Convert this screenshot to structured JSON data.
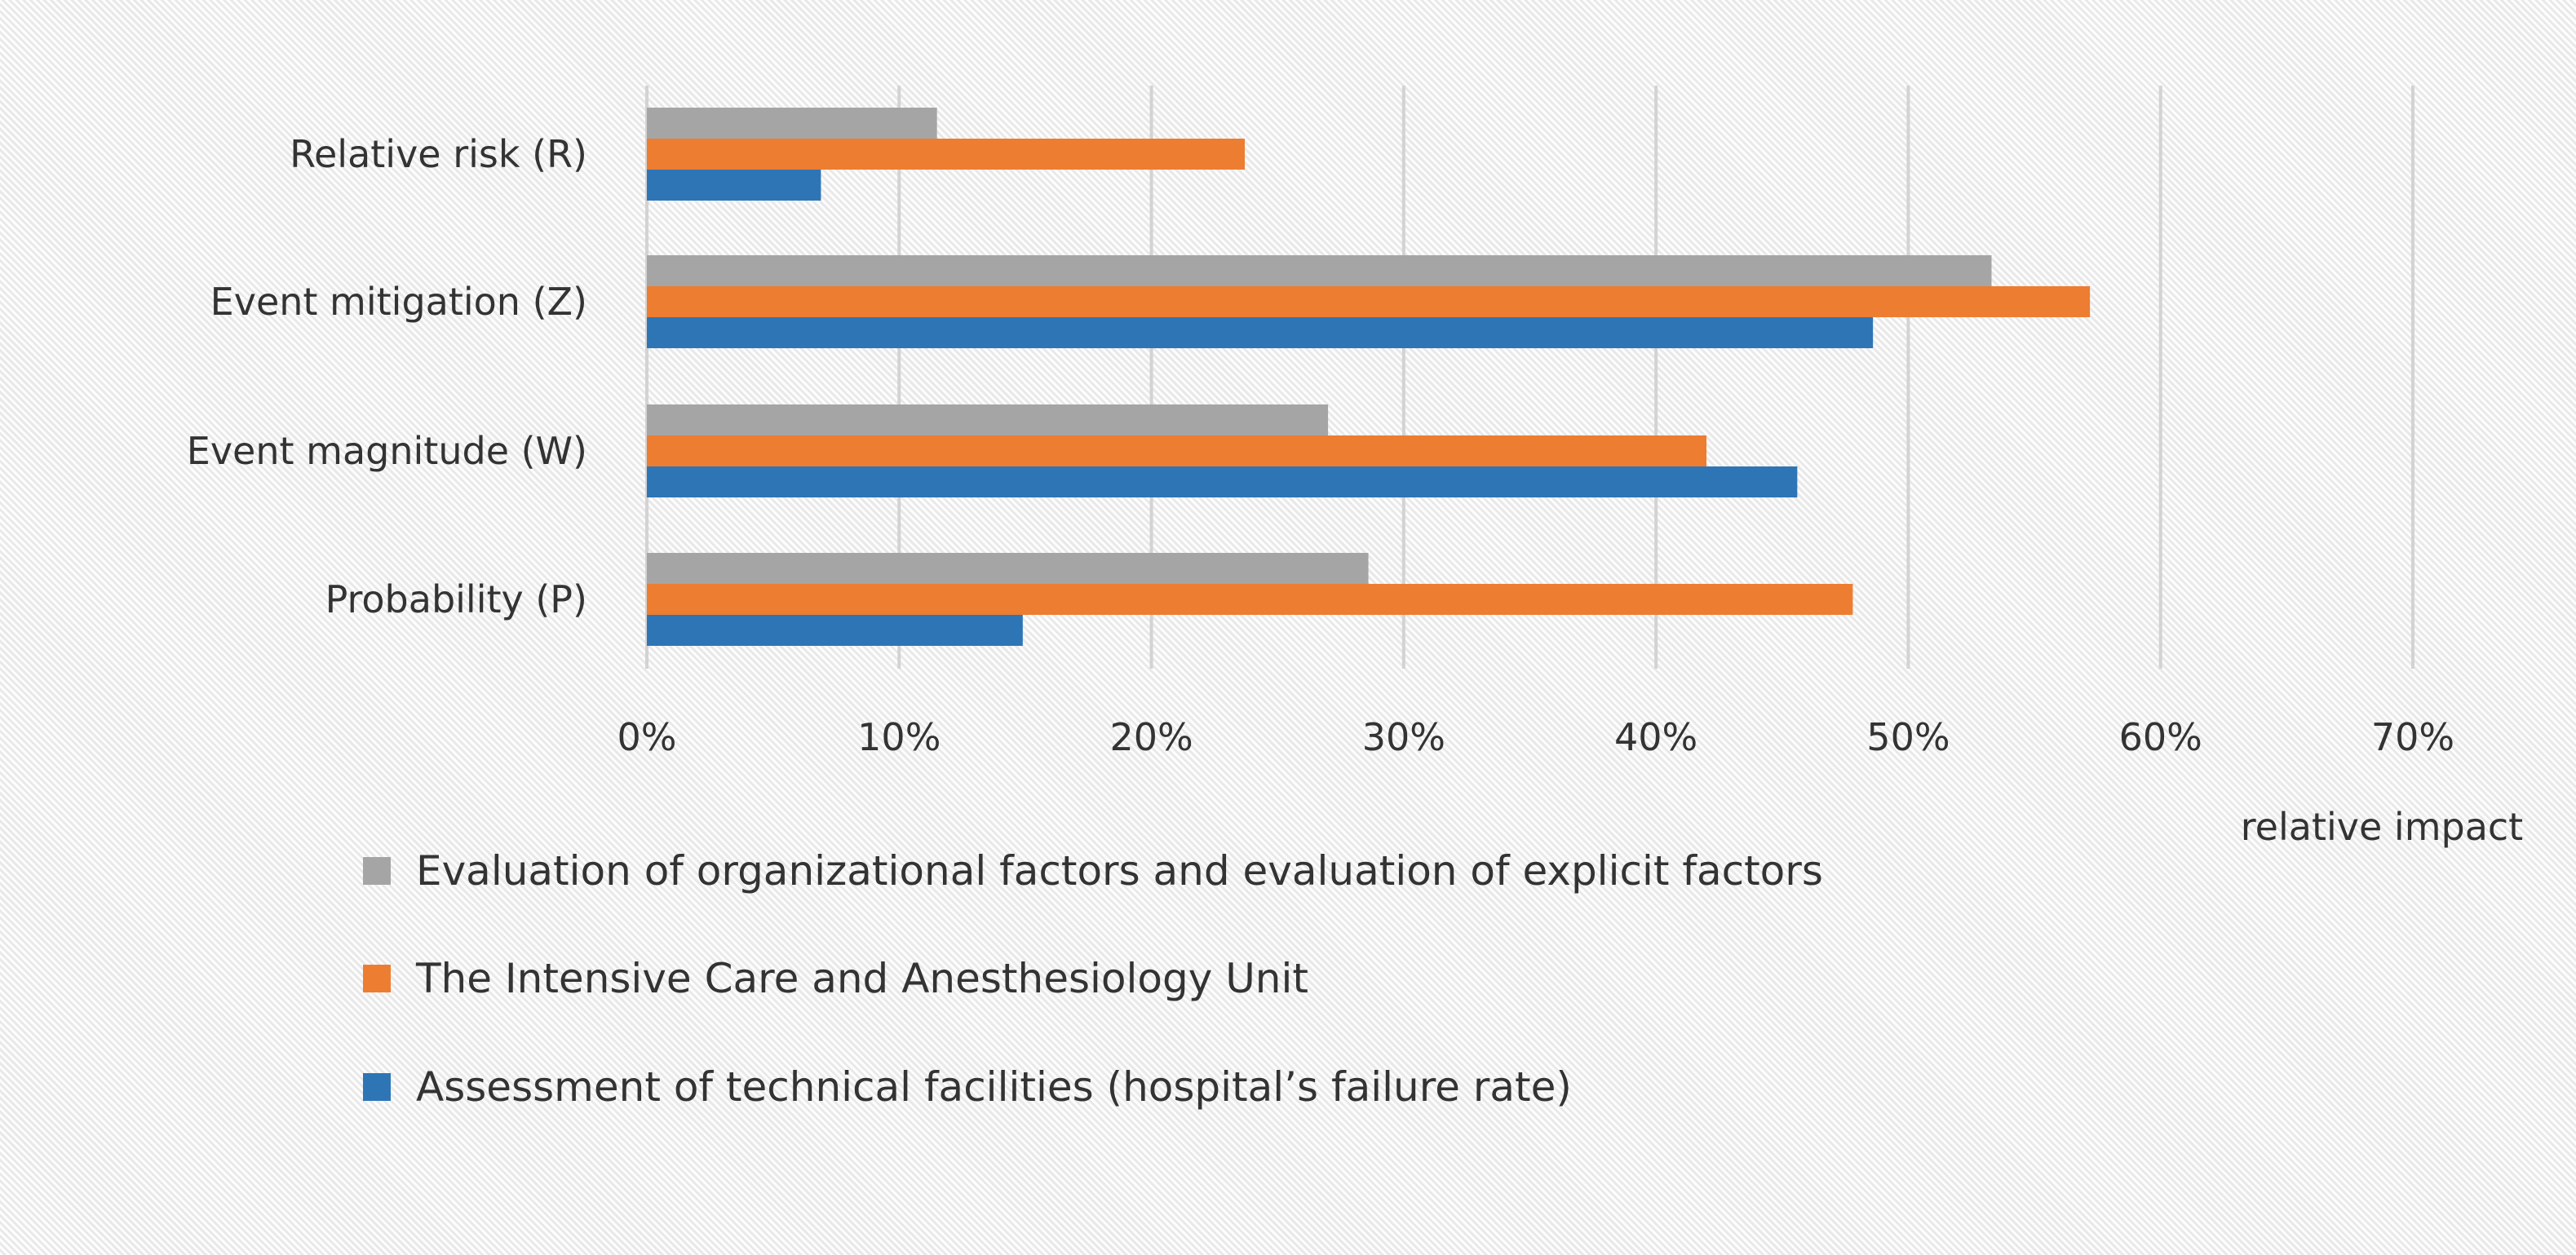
{
  "chart_data": {
    "type": "bar",
    "orientation": "horizontal",
    "title": "",
    "xlabel": "relative impact",
    "ylabel": "",
    "xlim": [
      0,
      70
    ],
    "xticks": [
      0,
      10,
      20,
      30,
      40,
      50,
      60,
      70
    ],
    "xtick_labels": [
      "0%",
      "10%",
      "20%",
      "30%",
      "40%",
      "50%",
      "60%",
      "70%"
    ],
    "categories": [
      "Relative risk (R)",
      "Event mitigation (Z)",
      "Event magnitude (W)",
      "Probability (P)"
    ],
    "series": [
      {
        "name": "Evaluation of organizational factors and evaluation of explicit factors",
        "color": "#a5a5a5",
        "values": [
          11.5,
          53.3,
          27.0,
          28.6
        ]
      },
      {
        "name": "The Intensive Care and Anesthesiology Unit",
        "color": "#ed7d31",
        "values": [
          23.7,
          57.2,
          42.0,
          47.8
        ]
      },
      {
        "name": "Assessment of technical facilities (hospital’s failure rate)",
        "color": "#2e75b6",
        "values": [
          6.9,
          48.6,
          45.6,
          14.9
        ]
      }
    ],
    "grid": true,
    "legend_position": "bottom"
  }
}
